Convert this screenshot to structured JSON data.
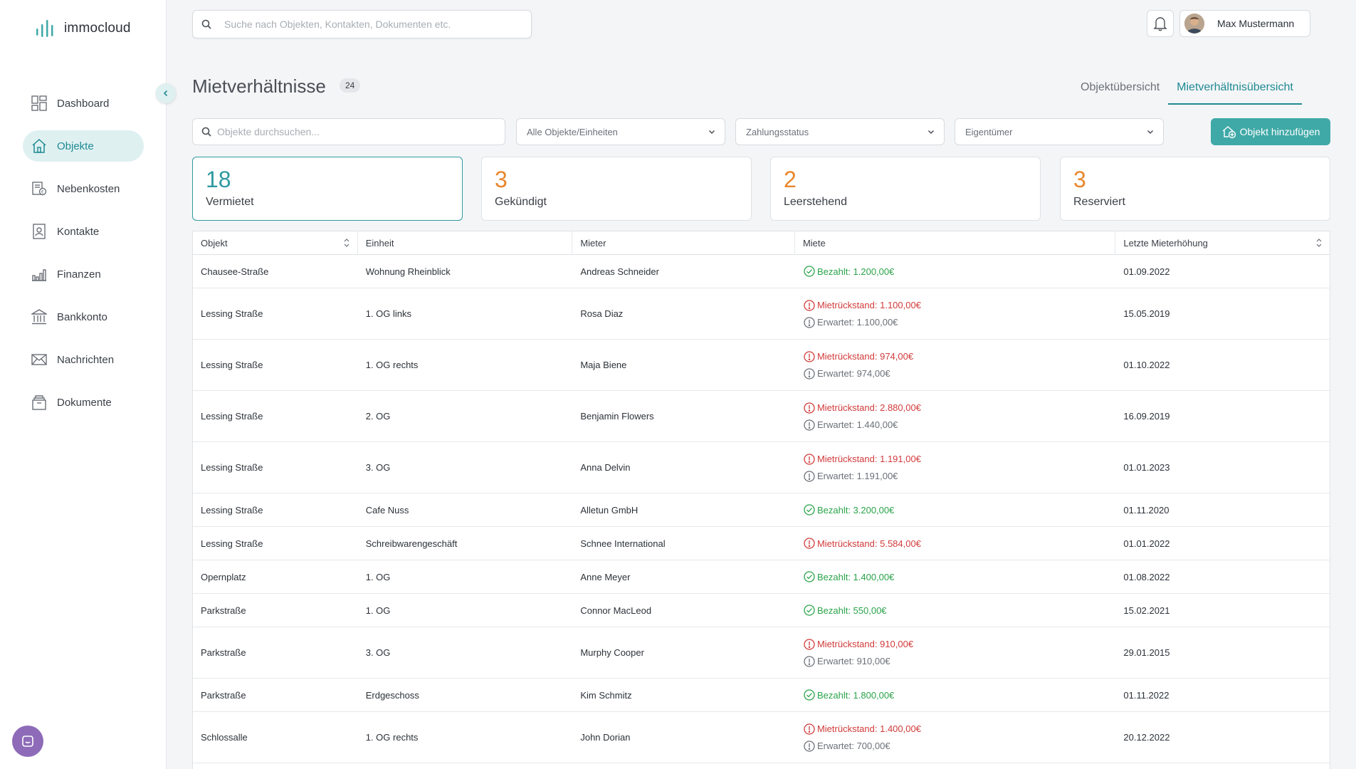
{
  "app": {
    "logo_text": "immocloud"
  },
  "sidebar": {
    "items": [
      {
        "label": "Dashboard",
        "icon": "dashboard-icon"
      },
      {
        "label": "Objekte",
        "icon": "home-icon",
        "active": true
      },
      {
        "label": "Nebenkosten",
        "icon": "receipt-icon"
      },
      {
        "label": "Kontakte",
        "icon": "contact-icon"
      },
      {
        "label": "Finanzen",
        "icon": "chart-icon"
      },
      {
        "label": "Bankkonto",
        "icon": "bank-icon"
      },
      {
        "label": "Nachrichten",
        "icon": "mail-icon"
      },
      {
        "label": "Dokumente",
        "icon": "documents-icon"
      }
    ]
  },
  "topbar": {
    "search_placeholder": "Suche nach Objekten, Kontakten, Dokumenten etc.",
    "user_name": "Max Mustermann"
  },
  "header": {
    "title": "Mietverhältnisse",
    "count": "24",
    "tabs": [
      {
        "label": "Objektübersicht",
        "active": false
      },
      {
        "label": "Mietverhältnisübersicht",
        "active": true
      }
    ]
  },
  "filters": {
    "search_placeholder": "Objekte durchsuchen...",
    "dropdown_objects": "Alle Objekte/Einheiten",
    "dropdown_payment": "Zahlungsstatus",
    "dropdown_owner": "Eigentümer",
    "add_button": "Objekt hinzufügen"
  },
  "stats": [
    {
      "value": "18",
      "label": "Vermietet",
      "color": "#2e9aa1"
    },
    {
      "value": "3",
      "label": "Gekündigt",
      "color": "#e8872b"
    },
    {
      "value": "2",
      "label": "Leerstehend",
      "color": "#e8872b"
    },
    {
      "value": "3",
      "label": "Reserviert",
      "color": "#e8872b"
    }
  ],
  "table": {
    "columns": [
      "Objekt",
      "Einheit",
      "Mieter",
      "Miete",
      "Letzte Mieterhöhung"
    ],
    "rows": [
      {
        "objekt": "Chausee-Straße",
        "einheit": "Wohnung Rheinblick",
        "mieter": "Andreas Schneider",
        "status": "paid",
        "primary": "Bezahlt: 1.200,00€",
        "expected": "",
        "date": "01.09.2022"
      },
      {
        "objekt": "Lessing Straße",
        "einheit": "1. OG links",
        "mieter": "Rosa Diaz",
        "status": "due",
        "primary": "Mietrückstand: 1.100,00€",
        "expected": "Erwartet: 1.100,00€",
        "date": "15.05.2019"
      },
      {
        "objekt": "Lessing Straße",
        "einheit": "1. OG rechts",
        "mieter": "Maja Biene",
        "status": "due",
        "primary": "Mietrückstand: 974,00€",
        "expected": "Erwartet: 974,00€",
        "date": "01.10.2022"
      },
      {
        "objekt": "Lessing Straße",
        "einheit": "2. OG",
        "mieter": "Benjamin Flowers",
        "status": "due",
        "primary": "Mietrückstand: 2.880,00€",
        "expected": "Erwartet: 1.440,00€",
        "date": "16.09.2019"
      },
      {
        "objekt": "Lessing Straße",
        "einheit": "3. OG",
        "mieter": "Anna Delvin",
        "status": "due",
        "primary": "Mietrückstand: 1.191,00€",
        "expected": "Erwartet: 1.191,00€",
        "date": "01.01.2023"
      },
      {
        "objekt": "Lessing Straße",
        "einheit": "Cafe Nuss",
        "mieter": "Alletun GmbH",
        "status": "paid",
        "primary": "Bezahlt: 3.200,00€",
        "expected": "",
        "date": "01.11.2020"
      },
      {
        "objekt": "Lessing Straße",
        "einheit": "Schreibwarengeschäft",
        "mieter": "Schnee International",
        "status": "due",
        "primary": "Mietrückstand: 5.584,00€",
        "expected": "",
        "date": "01.01.2022"
      },
      {
        "objekt": "Opernplatz",
        "einheit": "1. OG",
        "mieter": "Anne Meyer",
        "status": "paid",
        "primary": "Bezahlt: 1.400,00€",
        "expected": "",
        "date": "01.08.2022"
      },
      {
        "objekt": "Parkstraße",
        "einheit": "1. OG",
        "mieter": "Connor MacLeod",
        "status": "paid",
        "primary": "Bezahlt: 550,00€",
        "expected": "",
        "date": "15.02.2021"
      },
      {
        "objekt": "Parkstraße",
        "einheit": "3. OG",
        "mieter": "Murphy Cooper",
        "status": "due",
        "primary": "Mietrückstand: 910,00€",
        "expected": "Erwartet: 910,00€",
        "date": "29.01.2015"
      },
      {
        "objekt": "Parkstraße",
        "einheit": "Erdgeschoss",
        "mieter": "Kim Schmitz",
        "status": "paid",
        "primary": "Bezahlt: 1.800,00€",
        "expected": "",
        "date": "01.11.2022"
      },
      {
        "objekt": "Schlossalle",
        "einheit": "1. OG rechts",
        "mieter": "John Dorian",
        "status": "due",
        "primary": "Mietrückstand: 1.400,00€",
        "expected": "Erwartet: 700,00€",
        "date": "20.12.2022"
      }
    ]
  },
  "colors": {
    "accent": "#1f8a93",
    "button": "#3fa9a7",
    "paid": "#2aa34a",
    "due": "#d23a3a"
  }
}
